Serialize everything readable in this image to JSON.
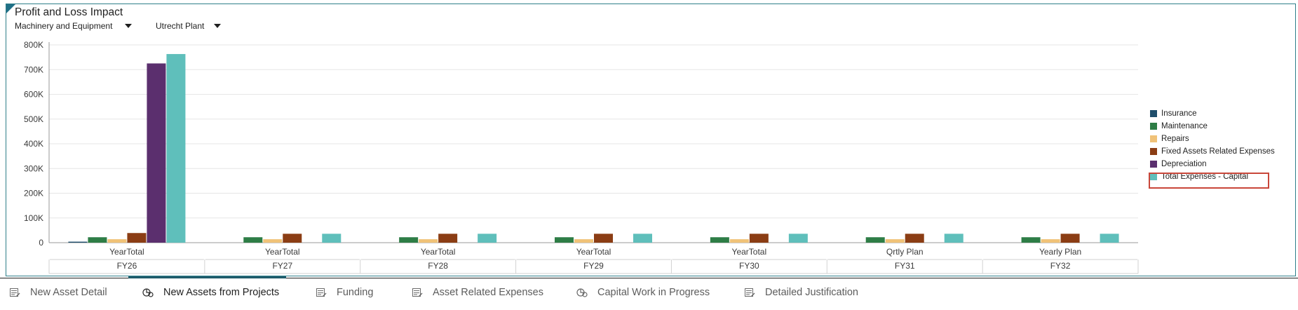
{
  "panel": {
    "title": "Profit and Loss Impact",
    "selectors": [
      {
        "label": "Machinery and Equipment"
      },
      {
        "label": "Utrecht Plant"
      }
    ]
  },
  "chart_data": {
    "type": "bar",
    "title": "",
    "xlabel": "",
    "ylabel": "",
    "ylim": [
      0,
      800000
    ],
    "yticks": [
      "0",
      "100K",
      "200K",
      "300K",
      "400K",
      "500K",
      "600K",
      "700K",
      "800K"
    ],
    "grid": true,
    "legend_position": "right",
    "groups": [
      {
        "outer": "FY26",
        "inner": "YearTotal"
      },
      {
        "outer": "FY27",
        "inner": "YearTotal"
      },
      {
        "outer": "FY28",
        "inner": "YearTotal"
      },
      {
        "outer": "FY29",
        "inner": "YearTotal"
      },
      {
        "outer": "FY30",
        "inner": "YearTotal"
      },
      {
        "outer": "FY31",
        "inner": "Qrtly Plan"
      },
      {
        "outer": "FY32",
        "inner": "Yearly Plan"
      }
    ],
    "series": [
      {
        "name": "Insurance",
        "color": "#1f4e6b",
        "values": [
          4000,
          0,
          0,
          0,
          0,
          0,
          0
        ]
      },
      {
        "name": "Maintenance",
        "color": "#2e7d46",
        "values": [
          22000,
          22000,
          22000,
          22000,
          22000,
          22000,
          22000
        ]
      },
      {
        "name": "Repairs",
        "color": "#f0c278",
        "values": [
          14000,
          14000,
          14000,
          14000,
          14000,
          14000,
          14000
        ]
      },
      {
        "name": "Fixed Assets Related Expenses",
        "color": "#8b3d14",
        "values": [
          39000,
          36000,
          36000,
          36000,
          36000,
          36000,
          36000
        ]
      },
      {
        "name": "Depreciation",
        "color": "#5b2f6e",
        "values": [
          725000,
          0,
          0,
          0,
          0,
          0,
          0
        ]
      },
      {
        "name": "Total Expenses - Capital",
        "color": "#5fbfbb",
        "values": [
          763000,
          36000,
          36000,
          36000,
          36000,
          36000,
          36000
        ]
      }
    ]
  },
  "tabs": [
    {
      "label": "New Asset Detail",
      "icon": "form-icon",
      "active": false
    },
    {
      "label": "New Assets from Projects",
      "icon": "analytics-icon",
      "active": true
    },
    {
      "label": "Funding",
      "icon": "form-icon",
      "active": false
    },
    {
      "label": "Asset Related Expenses",
      "icon": "form-icon",
      "active": false
    },
    {
      "label": "Capital Work in Progress",
      "icon": "analytics-icon",
      "active": false
    },
    {
      "label": "Detailed Justification",
      "icon": "form-icon",
      "active": false
    }
  ]
}
